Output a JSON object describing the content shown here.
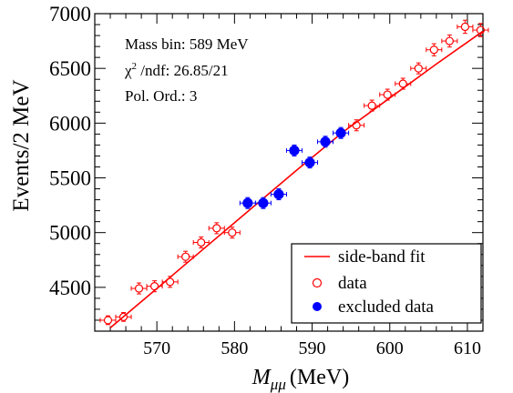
{
  "chart_data": {
    "type": "scatter",
    "xlabel_symbol": "M",
    "xlabel_subscript": "μμ",
    "xlabel_unit": "(MeV)",
    "ylabel": "Events/2 MeV",
    "xlim": [
      562,
      612
    ],
    "ylim": [
      4100,
      7000
    ],
    "x_ticks": [
      570,
      580,
      590,
      600,
      610
    ],
    "y_ticks": [
      4500,
      5000,
      5500,
      6000,
      6500,
      7000
    ],
    "info": {
      "mass_bin": "Mass bin: 589 MeV",
      "chi2_symbol": "χ",
      "chi2_exp": "2",
      "chi2_rest": " /ndf: 26.85/21",
      "pol_order": "Pol. Ord.: 3"
    },
    "legend": {
      "position": "bottom-right",
      "entries": [
        "side-band fit",
        "data",
        "excluded data"
      ]
    },
    "colors": {
      "fit": "#ff0000",
      "data": "#ff0000",
      "excluded": "#0000ff"
    },
    "x_half_width": 1,
    "fit": {
      "name": "side-band fit",
      "x": [
        564,
        570,
        576,
        582,
        588,
        594,
        600,
        606,
        612
      ],
      "y": [
        4130,
        4490,
        4850,
        5210,
        5570,
        5920,
        6230,
        6540,
        6840
      ]
    },
    "series": [
      {
        "name": "data",
        "marker": "open-circle",
        "x": [
          563.7,
          565.7,
          567.7,
          569.7,
          571.7,
          573.7,
          575.7,
          577.7,
          579.7,
          595.7,
          597.7,
          599.7,
          601.7,
          603.7,
          605.7,
          607.7,
          609.7,
          611.7
        ],
        "y": [
          4200,
          4230,
          4490,
          4510,
          4550,
          4780,
          4910,
          5040,
          5000,
          5980,
          6160,
          6260,
          6360,
          6500,
          6670,
          6750,
          6880,
          6850
        ],
        "err": [
          40,
          40,
          50,
          50,
          50,
          50,
          50,
          50,
          50,
          50,
          50,
          50,
          50,
          50,
          55,
          55,
          60,
          60
        ]
      },
      {
        "name": "excluded data",
        "marker": "filled-circle",
        "x": [
          581.7,
          583.7,
          585.7,
          587.7,
          589.7,
          591.7,
          593.7
        ],
        "y": [
          5270,
          5270,
          5350,
          5750,
          5640,
          5830,
          5910
        ],
        "err": [
          50,
          50,
          50,
          50,
          50,
          50,
          50
        ]
      }
    ]
  }
}
